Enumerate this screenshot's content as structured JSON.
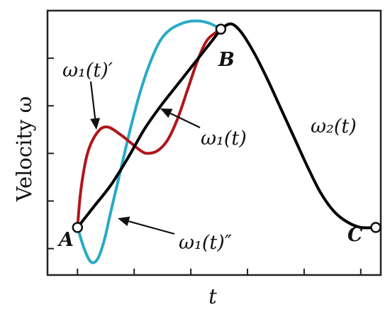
{
  "chart_data": {
    "type": "line",
    "title": "",
    "xlabel": "t",
    "ylabel": "Velocity ω",
    "xlim": [
      0,
      1
    ],
    "ylim": [
      0,
      1
    ],
    "grid": false,
    "legend": "none",
    "points": [
      {
        "label": "A",
        "x": 0.09,
        "y": 0.18
      },
      {
        "label": "B",
        "x": 0.52,
        "y": 0.93
      },
      {
        "label": "C",
        "x": 0.985,
        "y": 0.18
      }
    ],
    "series": [
      {
        "name": "ω₁(t)",
        "color": "#000000",
        "x": [
          0.09,
          0.14,
          0.19,
          0.24,
          0.29,
          0.34,
          0.39,
          0.44,
          0.49,
          0.52
        ],
        "y": [
          0.18,
          0.26,
          0.34,
          0.44,
          0.55,
          0.64,
          0.72,
          0.8,
          0.88,
          0.93
        ]
      },
      {
        "name": "ω₁(t)′",
        "color": "#b0161c",
        "x": [
          0.09,
          0.1,
          0.12,
          0.15,
          0.18,
          0.22,
          0.25,
          0.28,
          0.3,
          0.33,
          0.36,
          0.39,
          0.42,
          0.45,
          0.48,
          0.52
        ],
        "y": [
          0.18,
          0.32,
          0.46,
          0.54,
          0.56,
          0.53,
          0.5,
          0.47,
          0.46,
          0.47,
          0.51,
          0.59,
          0.7,
          0.81,
          0.89,
          0.93
        ]
      },
      {
        "name": "ω₁(t)″",
        "color": "#2aaac6",
        "x": [
          0.09,
          0.11,
          0.13,
          0.15,
          0.17,
          0.19,
          0.22,
          0.25,
          0.28,
          0.31,
          0.34,
          0.37,
          0.4,
          0.43,
          0.46,
          0.49,
          0.52
        ],
        "y": [
          0.18,
          0.1,
          0.05,
          0.06,
          0.13,
          0.24,
          0.4,
          0.56,
          0.7,
          0.81,
          0.89,
          0.93,
          0.95,
          0.96,
          0.96,
          0.95,
          0.93
        ]
      },
      {
        "name": "ω₂(t)",
        "color": "#000000",
        "x": [
          0.52,
          0.55,
          0.58,
          0.62,
          0.66,
          0.7,
          0.74,
          0.78,
          0.82,
          0.86,
          0.9,
          0.94,
          0.985
        ],
        "y": [
          0.93,
          0.95,
          0.92,
          0.84,
          0.74,
          0.63,
          0.52,
          0.41,
          0.31,
          0.24,
          0.2,
          0.18,
          0.18
        ]
      }
    ],
    "annotations": [
      {
        "text": "ω₁(t)′"
      },
      {
        "text": "ω₁(t)"
      },
      {
        "text": "ω₂(t)"
      },
      {
        "text": "ω₁(t)″"
      }
    ]
  }
}
